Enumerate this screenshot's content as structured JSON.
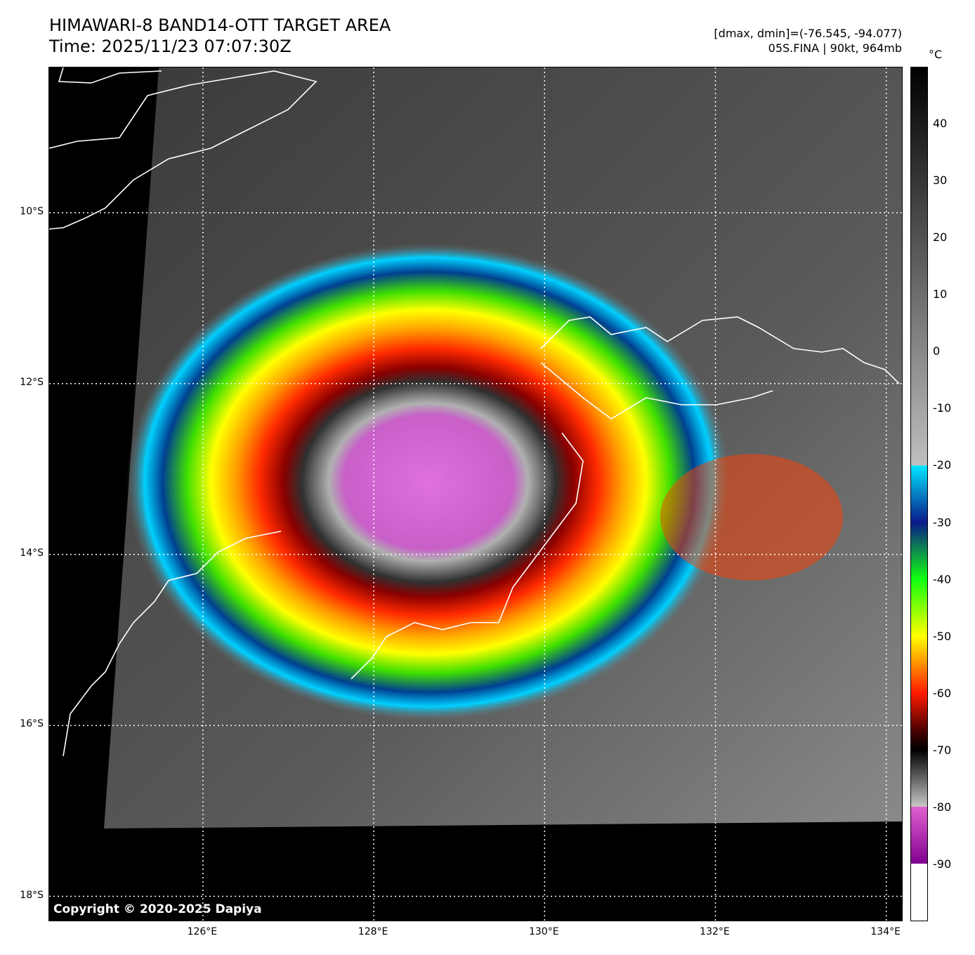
{
  "header": {
    "title_line1": "HIMAWARI-8 BAND14-OTT TARGET AREA",
    "title_line2": "Time: 2025/11/23 07:07:30Z",
    "info_line1": "[dmax, dmin]=(-76.545, -94.077)",
    "info_line2": "05S.FINA | 90kt, 964mb"
  },
  "map": {
    "copyright": "Copyright © 2020-2025 Dapiya",
    "lat_ticks": [
      {
        "label": "10°S",
        "value": -10
      },
      {
        "label": "12°S",
        "value": -12
      },
      {
        "label": "14°S",
        "value": -14
      },
      {
        "label": "16°S",
        "value": -16
      },
      {
        "label": "18°S",
        "value": -18
      }
    ],
    "lon_ticks": [
      {
        "label": "126°E",
        "value": 126
      },
      {
        "label": "128°E",
        "value": 128
      },
      {
        "label": "130°E",
        "value": 130
      },
      {
        "label": "132°E",
        "value": 132
      },
      {
        "label": "134°E",
        "value": 134
      }
    ],
    "extent": {
      "lon_min": 124.2,
      "lon_max": 134.2,
      "lat_min": -18.3,
      "lat_max": -8.3
    },
    "colors": {
      "background": "#000000",
      "coastline": "#ffffff",
      "grid": "#ffffff"
    }
  },
  "colorbar": {
    "unit": "°C",
    "range": [
      -100,
      50
    ],
    "ticks": [
      40,
      30,
      20,
      10,
      0,
      -10,
      -20,
      -30,
      -40,
      -50,
      -60,
      -70,
      -80,
      -90
    ]
  }
}
